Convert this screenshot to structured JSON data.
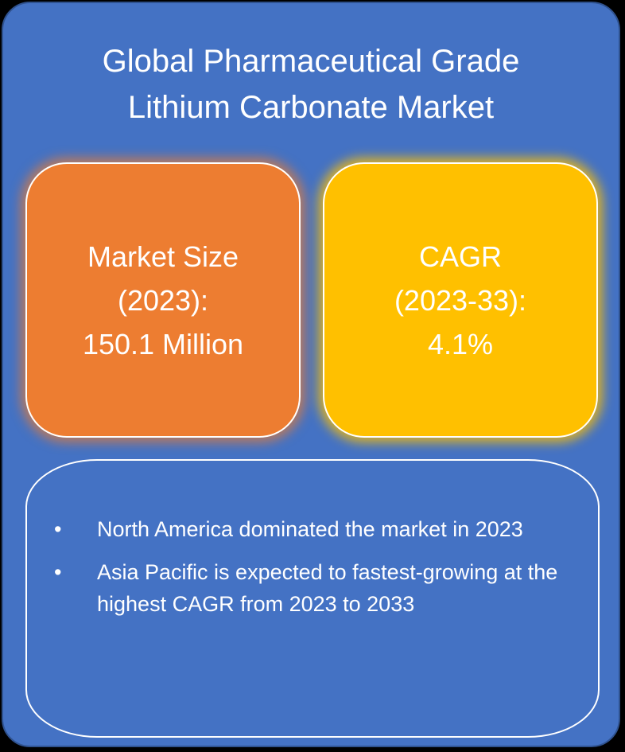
{
  "title": {
    "lines": [
      "Global Pharmaceutical Grade",
      "Lithium Carbonate Market"
    ]
  },
  "cards": [
    {
      "lines": [
        "Market Size",
        "(2023):",
        "150.1 Million"
      ]
    },
    {
      "lines": [
        "CAGR",
        "(2023-33):",
        "4.1%"
      ]
    }
  ],
  "bullets": [
    "North America dominated the market in 2023",
    "Asia Pacific is expected to fastest-growing at the highest CAGR from 2023 to 2033"
  ]
}
